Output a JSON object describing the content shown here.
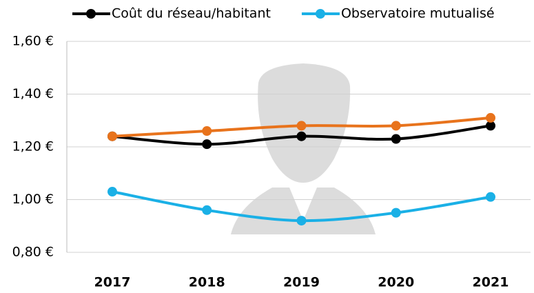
{
  "chart_data": {
    "type": "line",
    "categories": [
      "2017",
      "2018",
      "2019",
      "2020",
      "2021"
    ],
    "series": [
      {
        "name": "Coût du réseau/habitant",
        "color": "#000000",
        "values": [
          1.24,
          1.21,
          1.24,
          1.23,
          1.28
        ]
      },
      {
        "color": "#e8731c",
        "values": [
          1.24,
          1.26,
          1.28,
          1.28,
          1.31
        ]
      },
      {
        "name": "Observatoire mutualisé",
        "color": "#1ab0e6",
        "values": [
          1.03,
          0.96,
          0.92,
          0.95,
          1.01
        ]
      }
    ],
    "ylim": [
      0.8,
      1.6
    ],
    "yticks": [
      {
        "value": 0.8,
        "label": "0,80 €"
      },
      {
        "value": 1.0,
        "label": "1,00 €"
      },
      {
        "value": 1.2,
        "label": "1,20 €"
      },
      {
        "value": 1.4,
        "label": "1,40 €"
      },
      {
        "value": 1.6,
        "label": "1,60 €"
      }
    ],
    "grid": true,
    "legend": "top"
  }
}
